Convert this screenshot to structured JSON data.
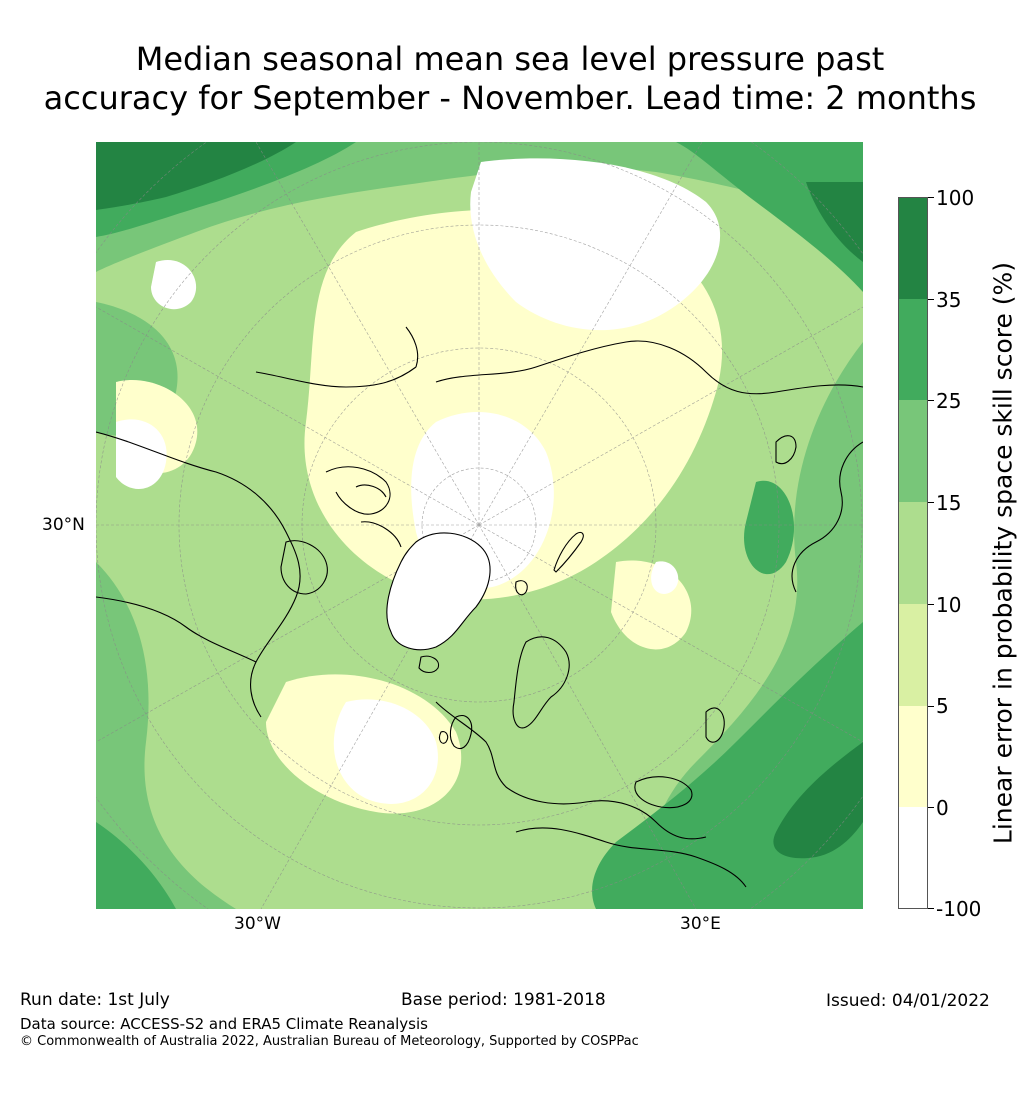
{
  "title": {
    "line1": "Median seasonal mean sea level pressure past",
    "line2": "accuracy for September - November. Lead time: 2 months"
  },
  "map": {
    "axis_labels": {
      "lat": "30°N",
      "lon_left": "30°W",
      "lon_right": "30°E"
    },
    "colors": {
      "c_neg": "#ffffff",
      "c0": "#ffffcc",
      "c5": "#d9f0a3",
      "c10": "#addd8e",
      "c15": "#78c679",
      "c25": "#41ab5d",
      "c35": "#238443",
      "coast": "#000000",
      "grid": "#888888"
    }
  },
  "colorbar": {
    "label": "Linear error in probability space skill score (%)",
    "ticks": [
      "100",
      "35",
      "25",
      "15",
      "10",
      "5",
      "0",
      "-100"
    ],
    "bins": [
      {
        "range": "35-100",
        "color": "#238443"
      },
      {
        "range": "25-35",
        "color": "#41ab5d"
      },
      {
        "range": "15-25",
        "color": "#78c679"
      },
      {
        "range": "10-15",
        "color": "#addd8e"
      },
      {
        "range": "5-10",
        "color": "#d9f0a3"
      },
      {
        "range": "0-5",
        "color": "#ffffcc"
      },
      {
        "range": "-100-0",
        "color": "#ffffff"
      }
    ]
  },
  "footer": {
    "run_date": "Run date: 1st July",
    "base_period": "Base period: 1981-2018",
    "issued": "Issued: 04/01/2022",
    "data_source": "Data source: ACCESS-S2 and ERA5 Climate Reanalysis",
    "copyright": "© Commonwealth of Australia 2022, Australian Bureau of Meteorology, Supported by COSPPac"
  }
}
